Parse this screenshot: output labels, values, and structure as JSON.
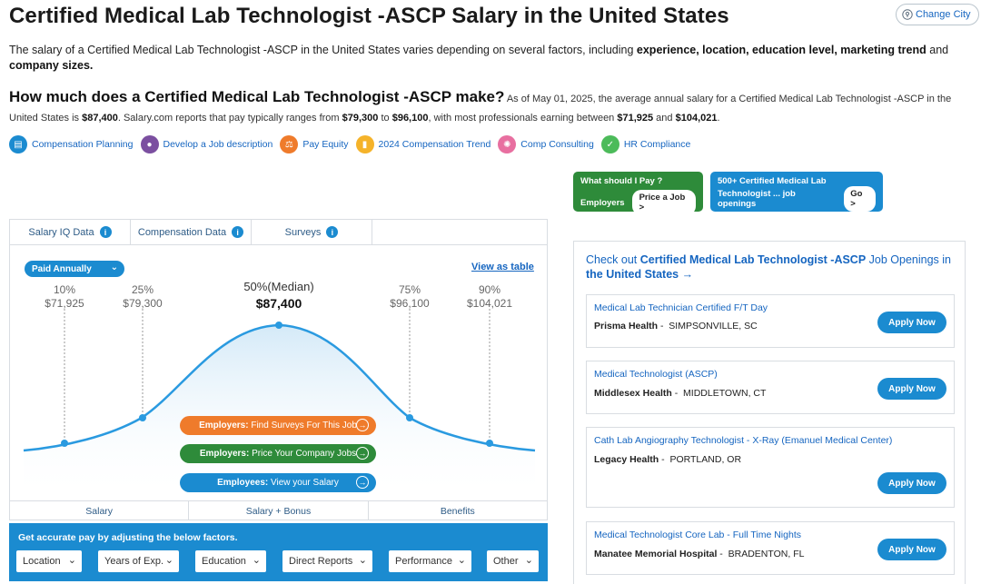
{
  "header": {
    "title": "Certified Medical Lab Technologist -ASCP Salary in the United States",
    "change_city": "Change City"
  },
  "intro": {
    "text_before": "The salary of a Certified Medical Lab Technologist -ASCP in the United States varies depending on several factors, including ",
    "factors": "experience, location, education level, marketing trend",
    "text_and": " and ",
    "factors2": "company sizes."
  },
  "summary": {
    "question": "How much does a Certified Medical Lab Technologist -ASCP make?",
    "s1": " As of May 01, 2025, the average annual salary for a Certified Medical Lab Technologist -ASCP in the United States is ",
    "avg": "$87,400",
    "s2": ". Salary.com reports that pay typically ranges from ",
    "low": "$79,300",
    "s3": " to ",
    "high": "$96,100",
    "s4": ", with most professionals earning between ",
    "low2": "$71,925",
    "s5": " and ",
    "high2": "$104,021",
    "s6": "."
  },
  "chips": [
    {
      "label": "Compensation Planning",
      "icon": "document-icon",
      "color": "#1b8bd0"
    },
    {
      "label": "Develop a Job description",
      "icon": "person-icon",
      "color": "#7b4fa0"
    },
    {
      "label": "Pay Equity",
      "icon": "scale-icon",
      "color": "#ef7b2b"
    },
    {
      "label": "2024 Compensation Trend",
      "icon": "trend-icon",
      "color": "#f5b32a"
    },
    {
      "label": "Comp Consulting",
      "icon": "consult-icon",
      "color": "#e86fa0"
    },
    {
      "label": "HR Compliance",
      "icon": "compliance-icon",
      "color": "#4cbb5a"
    }
  ],
  "cta": {
    "green_line1": "What should I Pay ?",
    "green_line2": "Employers",
    "green_button": "Price a Job >",
    "blue_line1": "500+ Certified Medical Lab",
    "blue_line2": "Technologist ... job openings",
    "blue_button": "Go >"
  },
  "panel": {
    "tabs": [
      "Salary IQ Data",
      "Compensation Data",
      "Surveys"
    ],
    "pay_select": "Paid Annually",
    "view_table": "View as table",
    "percentiles": [
      {
        "label": "10%",
        "value": "$71,925"
      },
      {
        "label": "25%",
        "value": "$79,300"
      },
      {
        "label": "50%(Median)",
        "value": "$87,400"
      },
      {
        "label": "75%",
        "value": "$96,100"
      },
      {
        "label": "90%",
        "value": "$104,021"
      }
    ],
    "buttons": [
      {
        "strong": "Employers:",
        "rest": " Find Surveys For This Job",
        "color": "#ef7b2b"
      },
      {
        "strong": "Employers:",
        "rest": " Price Your Company Jobs",
        "color": "#2e8b3a"
      },
      {
        "strong": "Employees:",
        "rest": " View your Salary",
        "color": "#1b8bd0"
      }
    ],
    "bottom_tabs": [
      "Salary",
      "Salary + Bonus",
      "Benefits"
    ]
  },
  "factors": {
    "label": "Get accurate pay by adjusting the below factors.",
    "dropdowns": [
      "Location",
      "Years of Exp.",
      "Education",
      "Direct Reports",
      "Performance",
      "Other"
    ]
  },
  "jobs": {
    "head_prefix": "Check out ",
    "head_job": "Certified Medical Lab Technologist -ASCP",
    "head_mid": " Job Openings in ",
    "head_loc": "the United States",
    "head_arrow": " →",
    "apply_label": "Apply Now",
    "items": [
      {
        "title": "Medical Lab Technician Certified F/T Day",
        "company": "Prisma Health",
        "location": "SIMPSONVILLE, SC"
      },
      {
        "title": "Medical Technologist (ASCP)",
        "company": "Middlesex Health",
        "location": "MIDDLETOWN, CT"
      },
      {
        "title": "Cath Lab Angiography Technologist - X-Ray (Emanuel Medical Center)",
        "company": "Legacy Health",
        "location": "PORTLAND, OR"
      },
      {
        "title": "Medical Technologist Core Lab - Full Time Nights",
        "company": "Manatee Memorial Hospital",
        "location": "BRADENTON, FL"
      }
    ]
  }
}
